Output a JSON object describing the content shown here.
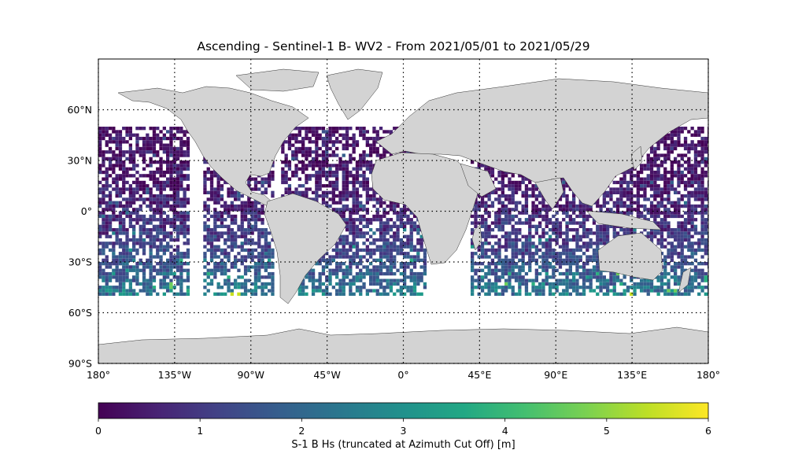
{
  "title": "Ascending - Sentinel-1 B- WV2 - From 2021/05/01 to 2021/05/29",
  "map": {
    "projection": "PlateCarree",
    "lon_range": [
      -180,
      180
    ],
    "lat_range": [
      -90,
      90
    ],
    "gridlines": "dotted",
    "lon_ticks": [
      {
        "value": -180,
        "label": "180°"
      },
      {
        "value": -135,
        "label": "135°W"
      },
      {
        "value": -90,
        "label": "90°W"
      },
      {
        "value": -45,
        "label": "45°W"
      },
      {
        "value": 0,
        "label": "0°"
      },
      {
        "value": 45,
        "label": "45°E"
      },
      {
        "value": 90,
        "label": "90°E"
      },
      {
        "value": 135,
        "label": "135°E"
      },
      {
        "value": 180,
        "label": "180°"
      }
    ],
    "lat_ticks": [
      {
        "value": 60,
        "label": "60°N"
      },
      {
        "value": 30,
        "label": "30°N"
      },
      {
        "value": 0,
        "label": "0°"
      },
      {
        "value": -30,
        "label": "30°S"
      },
      {
        "value": -60,
        "label": "60°S"
      },
      {
        "value": -90,
        "label": "90°S"
      }
    ],
    "land_color": "#d3d3d3",
    "coast_color": "#333333",
    "data_lat_extent": [
      -50,
      50
    ]
  },
  "colorbar": {
    "colormap": "viridis",
    "range": [
      0,
      6
    ],
    "ticks": [
      0,
      1,
      2,
      3,
      4,
      5,
      6
    ],
    "label": "S-1 B Hs (truncated at Azimuth Cut Off) [m]"
  }
}
